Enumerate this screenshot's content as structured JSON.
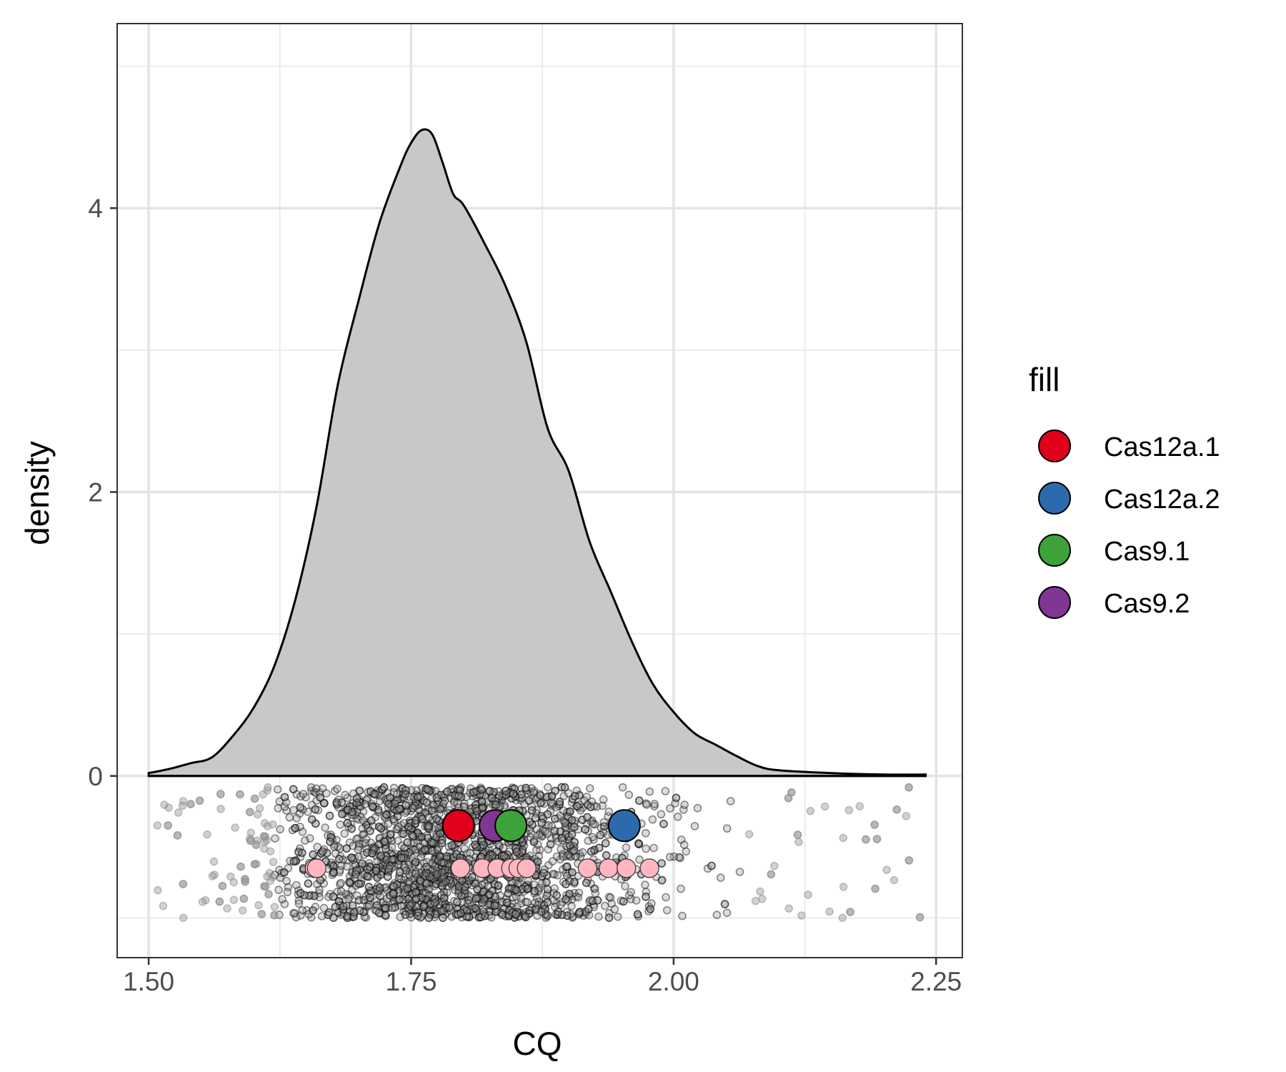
{
  "chart_data": {
    "type": "density",
    "xlabel": "CQ",
    "ylabel": "density",
    "xlim": [
      1.47,
      2.275
    ],
    "ylim": [
      -1.28,
      5.3
    ],
    "x_ticks": [
      1.5,
      1.75,
      2.0,
      2.25
    ],
    "x_tick_labels": [
      "1.50",
      "1.75",
      "2.00",
      "2.25"
    ],
    "y_ticks": [
      0,
      2,
      4
    ],
    "y_tick_labels": [
      "0",
      "2",
      "4"
    ],
    "grid": true,
    "legend": {
      "title": "fill",
      "position": "right",
      "entries": [
        {
          "label": "Cas12a.1",
          "color": "#e0001b"
        },
        {
          "label": "Cas12a.2",
          "color": "#2c6aad"
        },
        {
          "label": "Cas9.1",
          "color": "#3ea23b"
        },
        {
          "label": "Cas9.2",
          "color": "#813594"
        }
      ]
    },
    "density_curve": {
      "fill": "#c8c8c8",
      "x": [
        1.5,
        1.52,
        1.54,
        1.56,
        1.58,
        1.6,
        1.62,
        1.64,
        1.66,
        1.68,
        1.7,
        1.72,
        1.74,
        1.75,
        1.76,
        1.77,
        1.78,
        1.79,
        1.8,
        1.82,
        1.84,
        1.86,
        1.88,
        1.9,
        1.92,
        1.94,
        1.96,
        1.98,
        2.0,
        2.02,
        2.04,
        2.06,
        2.08,
        2.1,
        2.15,
        2.2,
        2.24
      ],
      "y": [
        0.02,
        0.05,
        0.09,
        0.13,
        0.28,
        0.48,
        0.78,
        1.25,
        1.9,
        2.75,
        3.35,
        3.9,
        4.3,
        4.46,
        4.55,
        4.52,
        4.32,
        4.1,
        4.02,
        3.75,
        3.45,
        3.05,
        2.45,
        2.15,
        1.65,
        1.3,
        0.95,
        0.65,
        0.45,
        0.3,
        0.22,
        0.14,
        0.07,
        0.04,
        0.02,
        0.01,
        0.01
      ]
    },
    "jitter_points": {
      "note_range": [
        1.5,
        2.24
      ],
      "y_range": [
        -1.0,
        -0.08
      ]
    },
    "highlight_points": [
      {
        "label": "Cas12a.1",
        "x": 1.795,
        "y": -0.35
      },
      {
        "label": "Cas9.2",
        "x": 1.83,
        "y": -0.35
      },
      {
        "label": "Cas9.1",
        "x": 1.845,
        "y": -0.35
      },
      {
        "label": "Cas12a.2",
        "x": 1.953,
        "y": -0.35
      }
    ],
    "pink_points": {
      "color": "#ffb6c1",
      "y": -0.65,
      "x": [
        1.658,
        1.66,
        1.797,
        1.818,
        1.832,
        1.845,
        1.852,
        1.86,
        1.918,
        1.938,
        1.955,
        1.977
      ]
    }
  }
}
